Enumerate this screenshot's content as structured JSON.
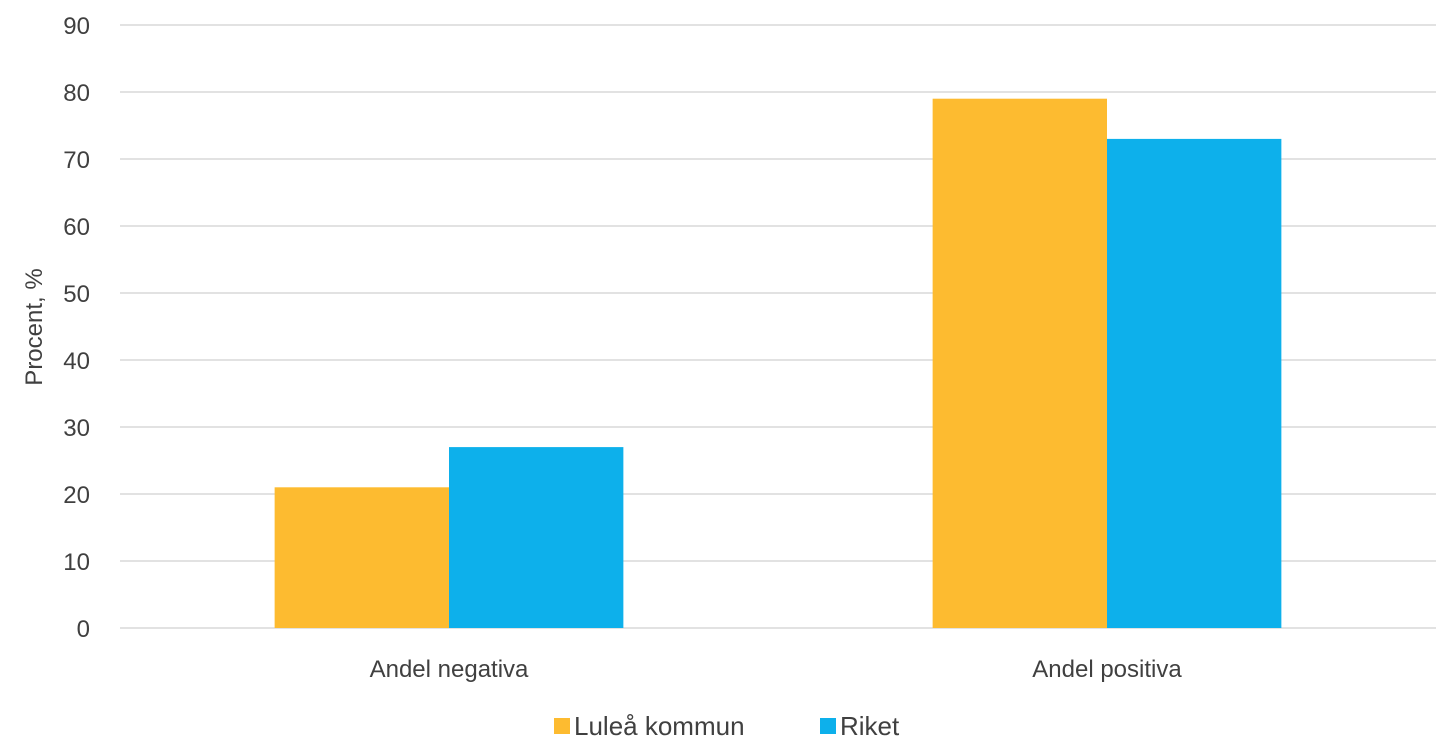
{
  "chart_data": {
    "type": "bar",
    "categories": [
      "Andel negativa",
      "Andel positiva"
    ],
    "series": [
      {
        "name": "Luleå kommun",
        "values": [
          21,
          79
        ],
        "color": "#FDBB30"
      },
      {
        "name": "Riket",
        "values": [
          27,
          73
        ],
        "color": "#0DB0EB"
      }
    ],
    "ylabel": "Procent, %",
    "ylim": [
      0,
      90
    ],
    "yticks": [
      0,
      10,
      20,
      30,
      40,
      50,
      60,
      70,
      80,
      90
    ],
    "grid": true,
    "legend_position": "bottom"
  }
}
